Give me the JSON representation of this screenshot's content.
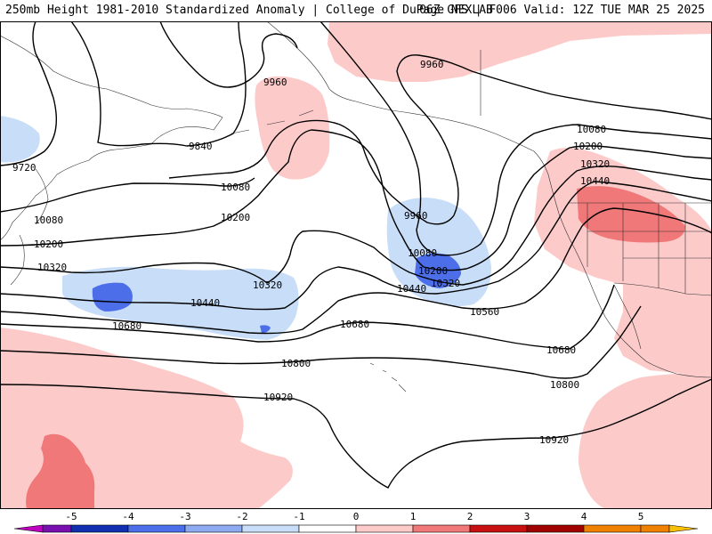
{
  "header": {
    "title_left": "250mb Height 1981-2010 Standardized Anomaly | College of DuPage NEXLAB",
    "title_right": "06Z GFS | F006 Valid: 12Z TUE MAR 25 2025"
  },
  "contours": {
    "labels": [
      "9720",
      "9840",
      "9960",
      "9960",
      "9960",
      "10080",
      "10080",
      "10080",
      "10080",
      "10200",
      "10200",
      "10200",
      "10200",
      "10320",
      "10320",
      "10320",
      "10320",
      "10440",
      "10440",
      "10440",
      "10560",
      "10680",
      "10680",
      "10680",
      "10800",
      "10800",
      "10920",
      "10920"
    ]
  },
  "colorbar": {
    "tick_labels": [
      "-5",
      "-4",
      "-3",
      "-2",
      "-1",
      "0",
      "1",
      "2",
      "3",
      "4",
      "5"
    ],
    "colors": [
      "#c000c0",
      "#7a0fb0",
      "#1030b0",
      "#4c6ee8",
      "#8eaaf0",
      "#c8ddf8",
      "#ffffff",
      "#fdcaca",
      "#f07878",
      "#c81010",
      "#a00000",
      "#f08000",
      "#f8c000"
    ]
  }
}
